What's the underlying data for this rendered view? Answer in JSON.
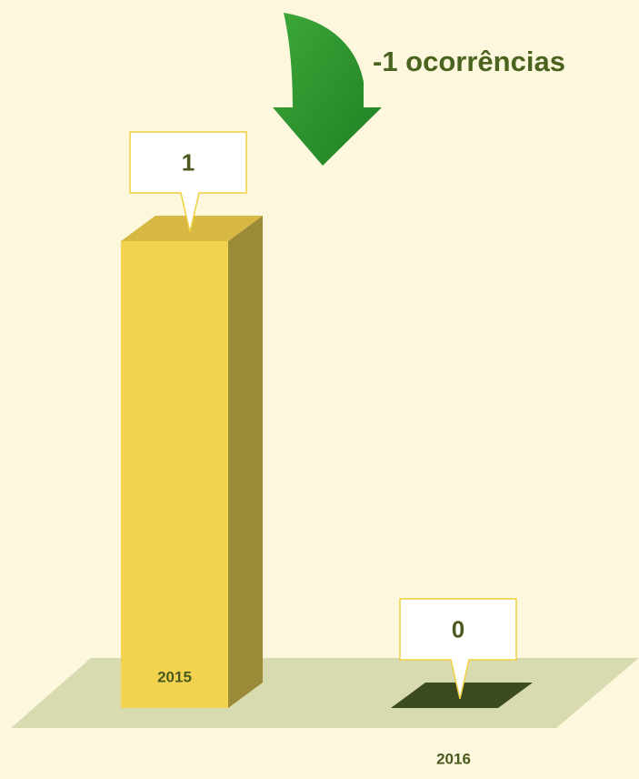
{
  "chart_data": {
    "type": "bar3d",
    "annotation": "-1 ocorrências",
    "categories": [
      "2015",
      "2016"
    ],
    "values": [
      1,
      0
    ],
    "color": "#f2d24e"
  }
}
